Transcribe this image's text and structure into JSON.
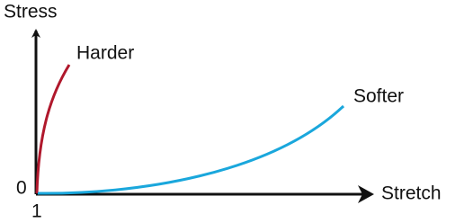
{
  "axes": {
    "y_label": "Stress",
    "x_label": "Stretch",
    "origin_y": "0",
    "origin_x": "1"
  },
  "curves": [
    {
      "label": "Harder"
    },
    {
      "label": "Softer"
    }
  ]
}
